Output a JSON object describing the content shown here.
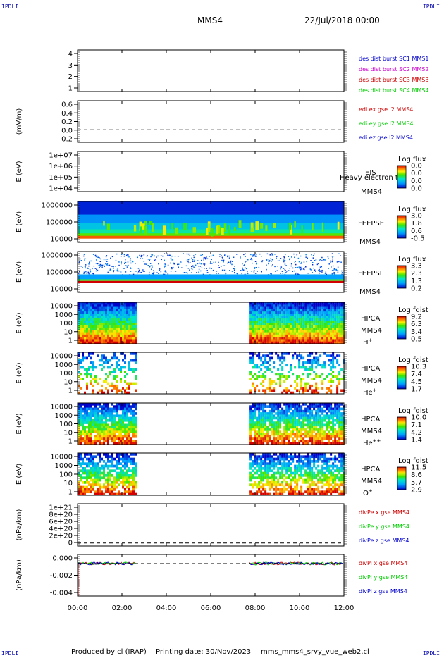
{
  "corners": {
    "top_left": "IPDLI",
    "top_right": "IPDLI",
    "bottom_left": "IPDLI",
    "bottom_right": "IPDLI"
  },
  "header": {
    "spacecraft": "MMS4",
    "date": "22/Jul/2018 00:00"
  },
  "footer": {
    "produced_by": "Produced by cl (IRAP)",
    "printing_date": "Printing date: 30/Nov/2023",
    "file": "mms_mms4_srvy_vue_web2.cl"
  },
  "colors": {
    "red": "#cc0000",
    "green": "#00cc00",
    "blue": "#0000cc",
    "magenta": "#cc00cc",
    "axis": "#000000"
  },
  "chart_data": {
    "type": "multi-panel timeseries",
    "time_axis": {
      "ticks": [
        "00:00",
        "02:00",
        "04:00",
        "06:00",
        "08:00",
        "10:00",
        "12:00"
      ],
      "range_hours": [
        0,
        12
      ]
    },
    "panels": [
      {
        "id": "p1",
        "ylabel": "",
        "yticks": [
          "4",
          "3",
          "2",
          "1"
        ],
        "legend": [
          {
            "text": "des dist burst SC1 MMS1",
            "color": "#0000cc"
          },
          {
            "text": "des dist burst SC2 MMS2",
            "color": "#cc00cc"
          },
          {
            "text": "des dist burst SC3 MMS3",
            "color": "#cc0000"
          },
          {
            "text": "des dist burst SC4 MMS4",
            "color": "#00cc00"
          }
        ]
      },
      {
        "id": "p2",
        "ylabel": "(mV/m)",
        "yticks": [
          "0.6",
          "0.4",
          "0.2",
          "0.0",
          "-0.2"
        ],
        "legend": [
          {
            "text": "edi ex gse l2 MMS4",
            "color": "#cc0000"
          },
          {
            "text": "edi ey gse l2 MMS4",
            "color": "#00cc00"
          },
          {
            "text": "edi ez gse l2 MMS4",
            "color": "#0000cc"
          }
        ]
      },
      {
        "id": "p3",
        "ylabel": "E (eV)",
        "yticks": [
          "1e+07",
          "1e+06",
          "1e+05",
          "1e+04"
        ],
        "instrument": [
          "EIS",
          "MMS4"
        ],
        "overlay": "Heavy electron to",
        "colorbar": {
          "title": "Log flux",
          "ticks": [
            "0.0",
            "0.0",
            "0.0",
            "0.0"
          ]
        }
      },
      {
        "id": "p4",
        "ylabel": "E (eV)",
        "yticks": [
          "1000000",
          "100000",
          "10000"
        ],
        "instrument": [
          "FEEPSE",
          "MMS4"
        ],
        "colorbar": {
          "title": "Log flux",
          "ticks": [
            "3.0",
            "1.8",
            "0.6",
            "-0.5"
          ]
        }
      },
      {
        "id": "p5",
        "ylabel": "E (eV)",
        "yticks": [
          "1000000",
          "100000",
          "10000"
        ],
        "instrument": [
          "FEEPSI",
          "MMS4"
        ],
        "colorbar": {
          "title": "Log flux",
          "ticks": [
            "3.3",
            "2.3",
            "1.3",
            "0.2"
          ]
        }
      },
      {
        "id": "p6",
        "ylabel": "E (eV)",
        "yticks": [
          "10000",
          "1000",
          "100",
          "10",
          "1"
        ],
        "instrument": [
          "HPCA",
          "MMS4"
        ],
        "species": "H",
        "charge": "+",
        "colorbar": {
          "title": "Log fdist",
          "ticks": [
            "9.2",
            "6.3",
            "3.4",
            "0.5"
          ]
        }
      },
      {
        "id": "p7",
        "ylabel": "E (eV)",
        "yticks": [
          "10000",
          "1000",
          "100",
          "10",
          "1"
        ],
        "instrument": [
          "HPCA",
          "MMS4"
        ],
        "species": "He",
        "charge": "+",
        "colorbar": {
          "title": "Log fdist",
          "ticks": [
            "10.3",
            "7.4",
            "4.5",
            "1.7"
          ]
        }
      },
      {
        "id": "p8",
        "ylabel": "E (eV)",
        "yticks": [
          "10000",
          "1000",
          "100",
          "10",
          "1"
        ],
        "instrument": [
          "HPCA",
          "MMS4"
        ],
        "species": "He",
        "charge": "++",
        "colorbar": {
          "title": "Log fdist",
          "ticks": [
            "10.0",
            "7.1",
            "4.2",
            "1.4"
          ]
        }
      },
      {
        "id": "p9",
        "ylabel": "E (eV)",
        "yticks": [
          "10000",
          "1000",
          "100",
          "10",
          "1"
        ],
        "instrument": [
          "HPCA",
          "MMS4"
        ],
        "species": "O",
        "charge": "+",
        "colorbar": {
          "title": "Log fdist",
          "ticks": [
            "11.5",
            "8.6",
            "5.7",
            "2.9"
          ]
        }
      },
      {
        "id": "p10",
        "ylabel": "(nPa/km)",
        "yticks": [
          "1e+21",
          "8e+20",
          "6e+20",
          "4e+20",
          "2e+20",
          "0"
        ],
        "legend": [
          {
            "text": "divPe x gse MMS4",
            "color": "#cc0000"
          },
          {
            "text": "divPe y gse MMS4",
            "color": "#00cc00"
          },
          {
            "text": "divPe z gse MMS4",
            "color": "#0000cc"
          }
        ]
      },
      {
        "id": "p11",
        "ylabel": "(nPa/km)",
        "yticks": [
          "0.000",
          "-0.002",
          "-0.004"
        ],
        "legend": [
          {
            "text": "divPi x gse MMS4",
            "color": "#cc0000"
          },
          {
            "text": "divPi y gse MMS4",
            "color": "#00cc00"
          },
          {
            "text": "divPi z gse MMS4",
            "color": "#0000cc"
          }
        ]
      }
    ],
    "hpca_data_intervals_hours": [
      [
        0.0,
        2.65
      ],
      [
        7.75,
        12.0
      ]
    ]
  }
}
